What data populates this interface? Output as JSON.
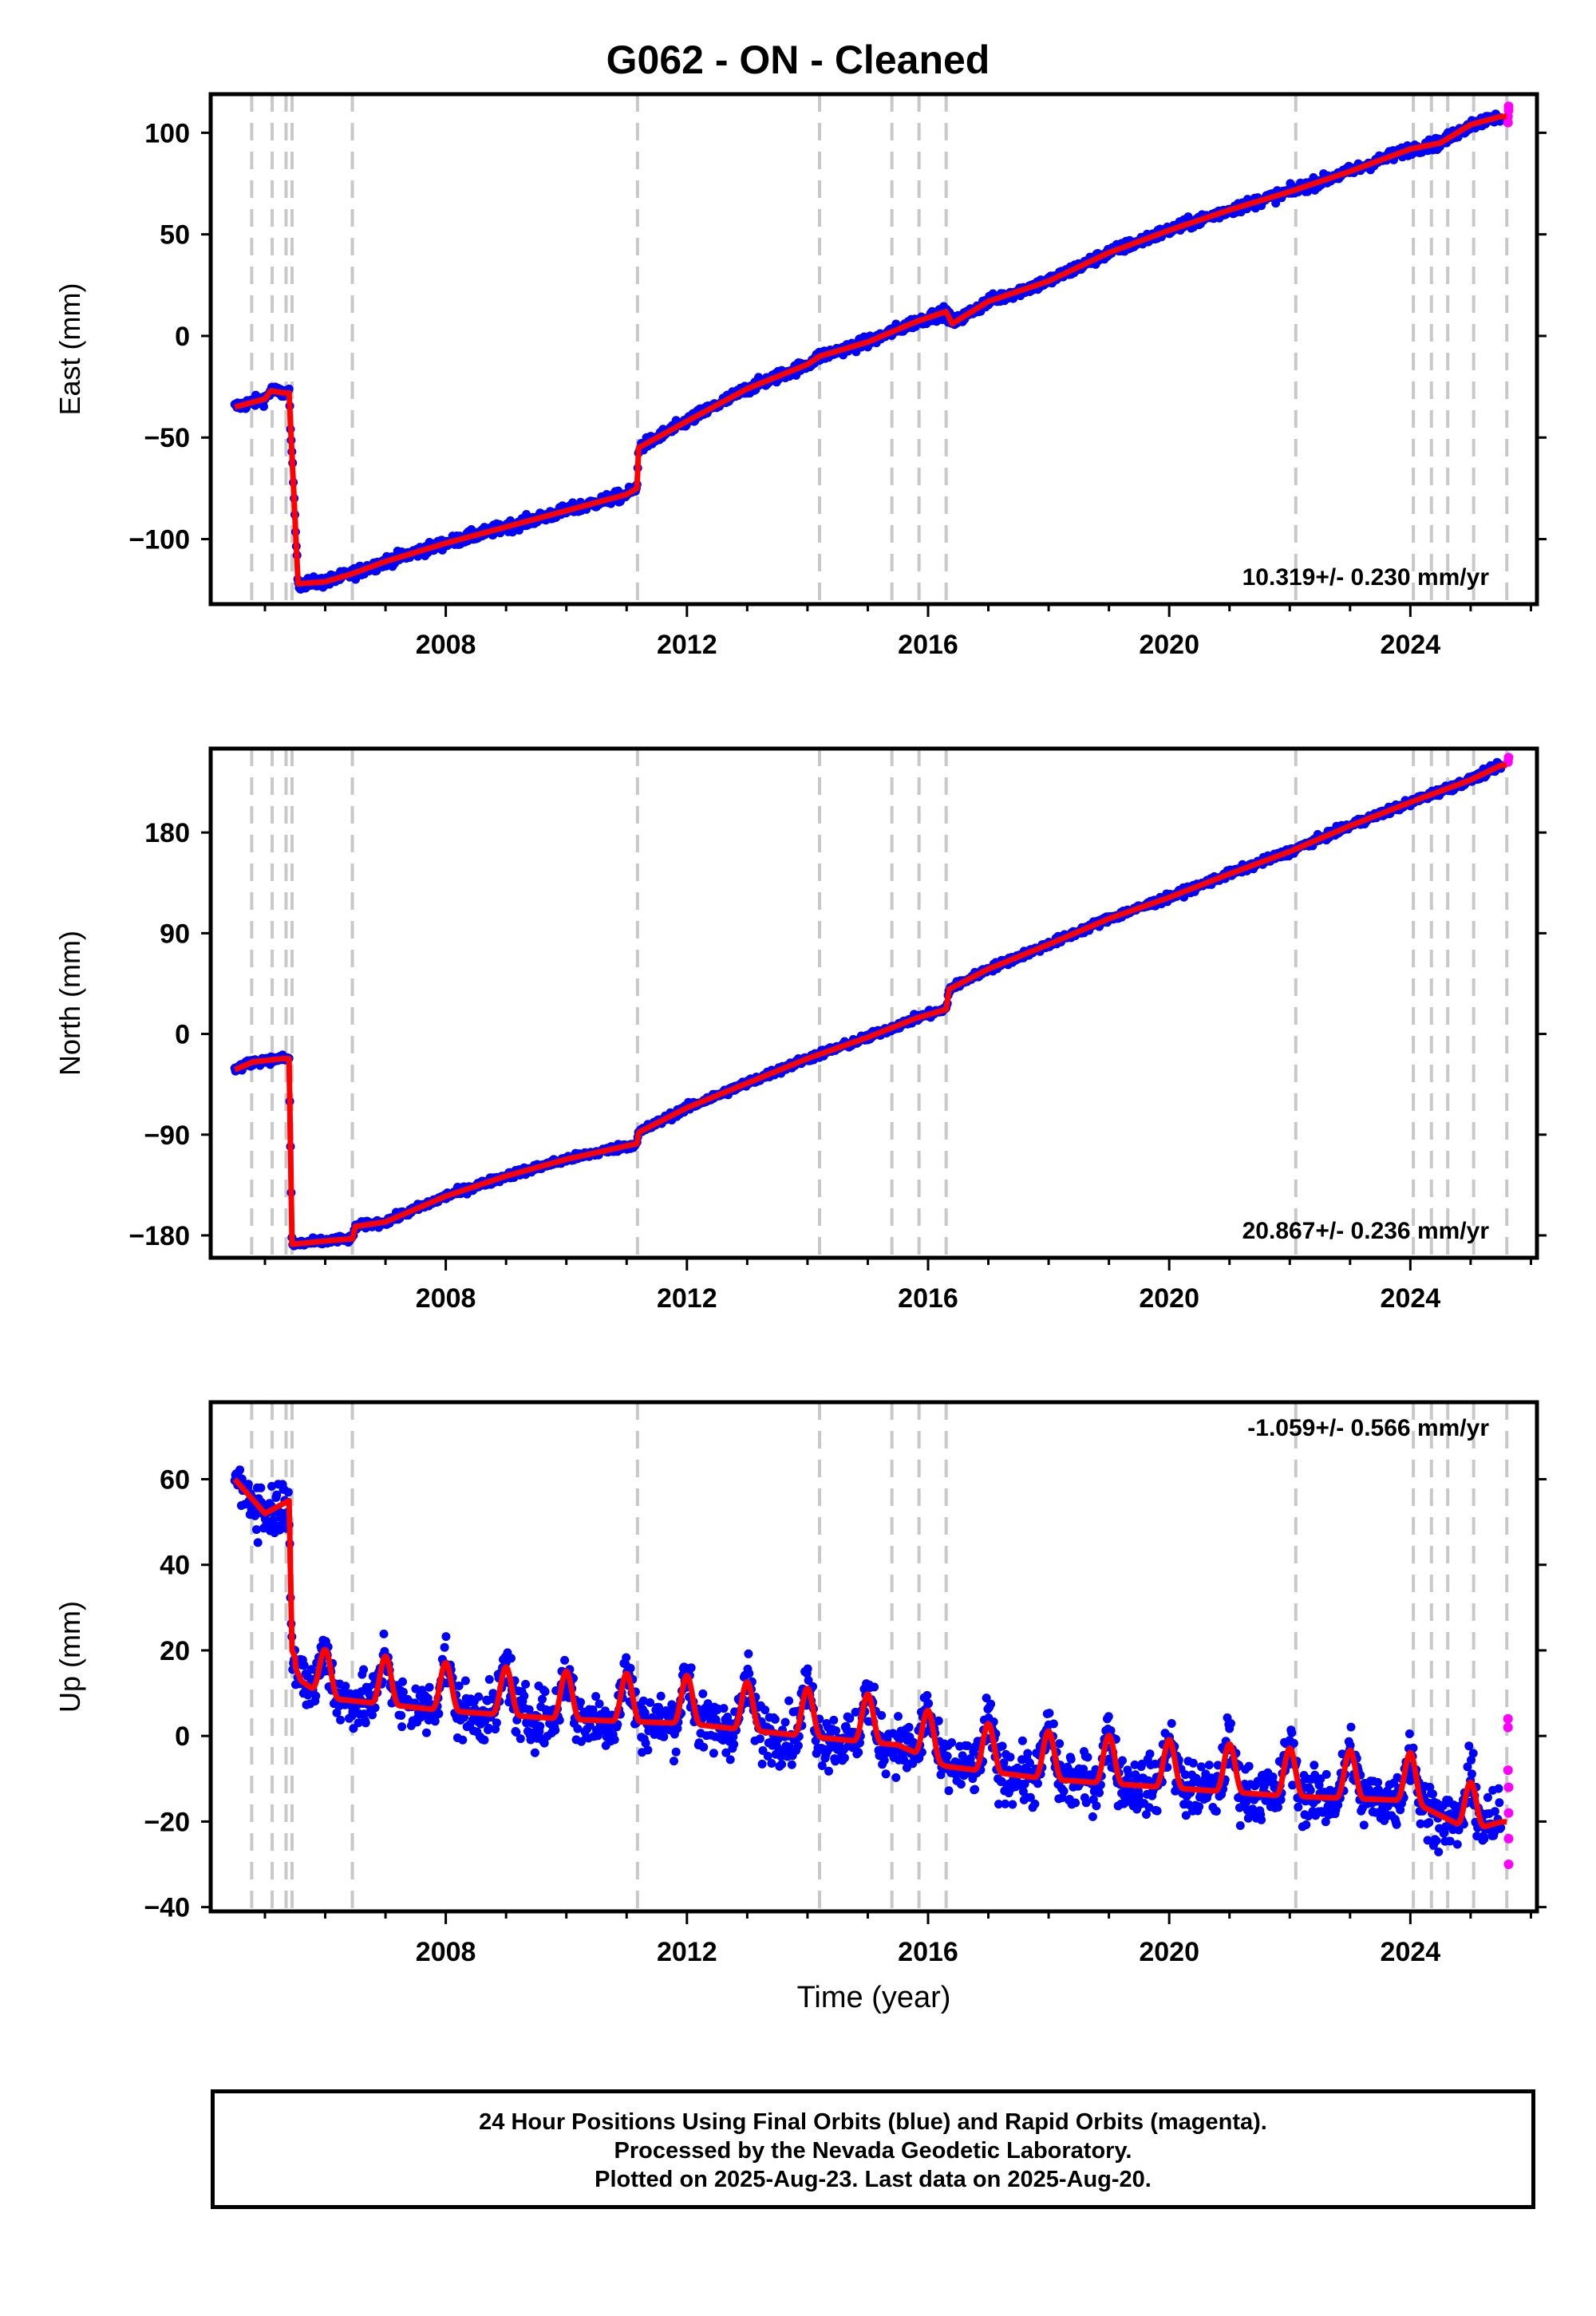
{
  "title": "G062  - ON - Cleaned",
  "footer": {
    "line1": "24 Hour Positions Using Final Orbits (blue) and Rapid Orbits (magenta).",
    "line2": "Processed by the Nevada Geodetic Laboratory.",
    "line3": "Plotted on 2025-Aug-23. Last data on 2025-Aug-20."
  },
  "colors": {
    "final": "#0000ff",
    "rapid": "#ff00ff",
    "model": "#ff0000",
    "steps": "#c8c8c8"
  },
  "step_epochs": [
    2004.78,
    2005.12,
    2005.35,
    2005.45,
    2006.45,
    2011.18,
    2014.2,
    2015.4,
    2015.85,
    2016.3,
    2022.1,
    2024.05,
    2024.35,
    2024.62,
    2025.05,
    2025.6
  ],
  "chart_data": [
    {
      "type": "scatter",
      "panel": "east",
      "ylabel": "East (mm)",
      "xlim": [
        2004.1,
        2026.1
      ],
      "ylim": [
        -132,
        119
      ],
      "yticks": [
        "100",
        "50",
        "0",
        "−50",
        "−100"
      ],
      "ytick_values": [
        100,
        50,
        0,
        -50,
        -100
      ],
      "xticks": [
        "2008",
        "2012",
        "2016",
        "2020",
        "2024"
      ],
      "xtick_values": [
        2008,
        2012,
        2016,
        2020,
        2024
      ],
      "rate_label": "10.319+/- 0.230 mm/yr",
      "rate_position": "bottom-right",
      "series": [
        {
          "kind": "daily",
          "x": [
            2004.5,
            2005.0,
            2005.1,
            2005.3,
            2005.4,
            2005.55,
            2006.0,
            2006.45,
            2007.0,
            2008.0,
            2009.0,
            2010.0,
            2011.0,
            2011.17,
            2011.2,
            2012.0,
            2013.0,
            2014.0,
            2014.2,
            2015.0,
            2015.8,
            2016.3,
            2016.4,
            2017.0,
            2018.0,
            2019.0,
            2020.0,
            2021.0,
            2022.0,
            2023.0,
            2024.0,
            2024.5,
            2025.0,
            2025.5
          ],
          "y": [
            -35,
            -31,
            -27,
            -28,
            -28,
            -122,
            -121,
            -117,
            -111,
            -102,
            -94,
            -86,
            -78,
            -75,
            -55,
            -42,
            -26,
            -14,
            -10,
            -3,
            7,
            12,
            6,
            17,
            27,
            41,
            52,
            62,
            71,
            81,
            92,
            95,
            104,
            108
          ],
          "scatter": 2.5
        },
        {
          "kind": "rapid",
          "x": [
            2025.62,
            2025.62,
            2025.63,
            2025.63
          ],
          "y": [
            105,
            108,
            111,
            113
          ]
        }
      ]
    },
    {
      "type": "scatter",
      "panel": "north",
      "ylabel": "North (mm)",
      "xlim": [
        2004.1,
        2026.1
      ],
      "ylim": [
        -200,
        255
      ],
      "yticks": [
        "180",
        "90",
        "0",
        "−90",
        "−180"
      ],
      "ytick_values": [
        180,
        90,
        0,
        -90,
        -180
      ],
      "xticks": [
        "2008",
        "2012",
        "2016",
        "2020",
        "2024"
      ],
      "xtick_values": [
        2008,
        2012,
        2016,
        2020,
        2024
      ],
      "rate_label": "20.867+/- 0.236 mm/yr",
      "rate_position": "bottom-right",
      "series": [
        {
          "kind": "daily",
          "x": [
            2004.5,
            2004.8,
            2005.3,
            2005.4,
            2005.45,
            2006.0,
            2006.45,
            2006.5,
            2007.0,
            2008.0,
            2009.0,
            2010.0,
            2011.17,
            2011.2,
            2012.0,
            2013.0,
            2014.0,
            2015.0,
            2015.8,
            2016.3,
            2016.35,
            2017.0,
            2018.0,
            2019.0,
            2020.0,
            2021.0,
            2022.0,
            2023.0,
            2024.0,
            2025.0,
            2025.5
          ],
          "y": [
            -32,
            -25,
            -22,
            -22,
            -188,
            -185,
            -183,
            -172,
            -168,
            -145,
            -127,
            -112,
            -98,
            -88,
            -66,
            -44,
            -22,
            -3,
            14,
            22,
            40,
            58,
            80,
            103,
            122,
            143,
            163,
            186,
            207,
            227,
            240
          ],
          "scatter": 3
        },
        {
          "kind": "rapid",
          "x": [
            2025.62,
            2025.63
          ],
          "y": [
            243,
            247
          ]
        }
      ]
    },
    {
      "type": "scatter",
      "panel": "up",
      "ylabel": "Up (mm)",
      "xlabel": "Time (year)",
      "xlim": [
        2004.1,
        2026.1
      ],
      "ylim": [
        -41,
        78
      ],
      "yticks": [
        "60",
        "40",
        "20",
        "0",
        "−20",
        "−40"
      ],
      "ytick_values": [
        60,
        40,
        20,
        0,
        -20,
        -40
      ],
      "xticks": [
        "2008",
        "2012",
        "2016",
        "2020",
        "2024"
      ],
      "xtick_values": [
        2008,
        2012,
        2016,
        2020,
        2024
      ],
      "rate_label": "-1.059+/- 0.566 mm/yr",
      "rate_position": "top-right",
      "series": [
        {
          "kind": "daily",
          "x": [
            2004.5,
            2005.0,
            2005.4,
            2005.45,
            2005.6,
            2006.0,
            2008.0,
            2010.0,
            2012.0,
            2014.0,
            2015.5,
            2016.3,
            2018.0,
            2020.0,
            2022.0,
            2024.0,
            2025.0,
            2025.5
          ],
          "y": [
            60,
            52,
            55,
            20,
            15,
            11,
            8,
            6,
            5,
            2,
            0,
            -5,
            -8,
            -10,
            -12,
            -13,
            -20,
            -18
          ],
          "seasonal_amplitude": 7,
          "scatter": 6
        },
        {
          "kind": "rapid",
          "x": [
            2025.62,
            2025.62,
            2025.62,
            2025.63,
            2025.63,
            2025.63,
            2025.63
          ],
          "y": [
            4,
            2,
            -8,
            -12,
            -18,
            -24,
            -30
          ]
        }
      ]
    }
  ]
}
